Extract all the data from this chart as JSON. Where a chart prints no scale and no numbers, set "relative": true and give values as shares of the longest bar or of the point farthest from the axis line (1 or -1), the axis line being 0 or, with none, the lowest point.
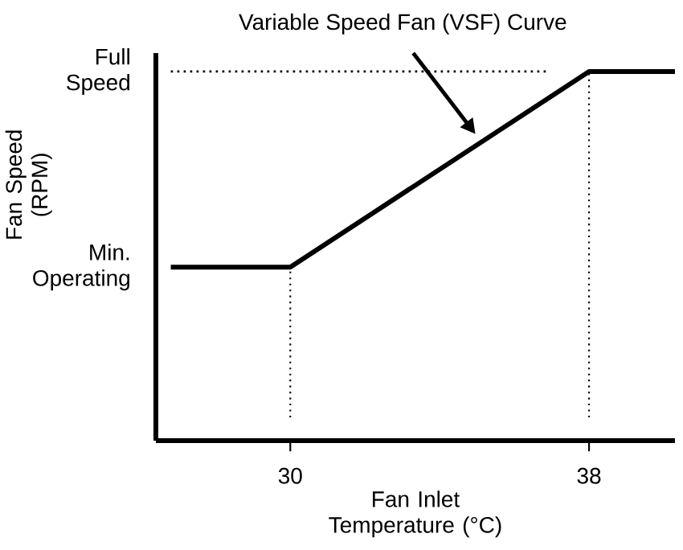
{
  "chart_data": {
    "type": "line",
    "xlabel": "Fan Inlet Temperature (°C)",
    "ylabel": "Fan Speed (RPM)",
    "xlim": [
      26.4,
      40.3
    ],
    "xticks": [
      30,
      38
    ],
    "relative": true,
    "series": [
      {
        "color": "#000000",
        "x": [
          26.8,
          30,
          38,
          40.3
        ],
        "values": [
          0.47,
          0.47,
          1,
          1
        ]
      }
    ],
    "ref_lines": [
      {
        "axis": "x",
        "value": 30,
        "line_style": "dotted"
      },
      {
        "axis": "x",
        "value": 38,
        "line_style": "dotted"
      },
      {
        "axis": "y",
        "value": 1,
        "line_style": "dotted"
      }
    ],
    "annotations": [
      "Variable Speed Fan  (VSF) Curve",
      "Min. Operating",
      "Full Speed"
    ],
    "marker": "none",
    "line_style": "solid"
  }
}
